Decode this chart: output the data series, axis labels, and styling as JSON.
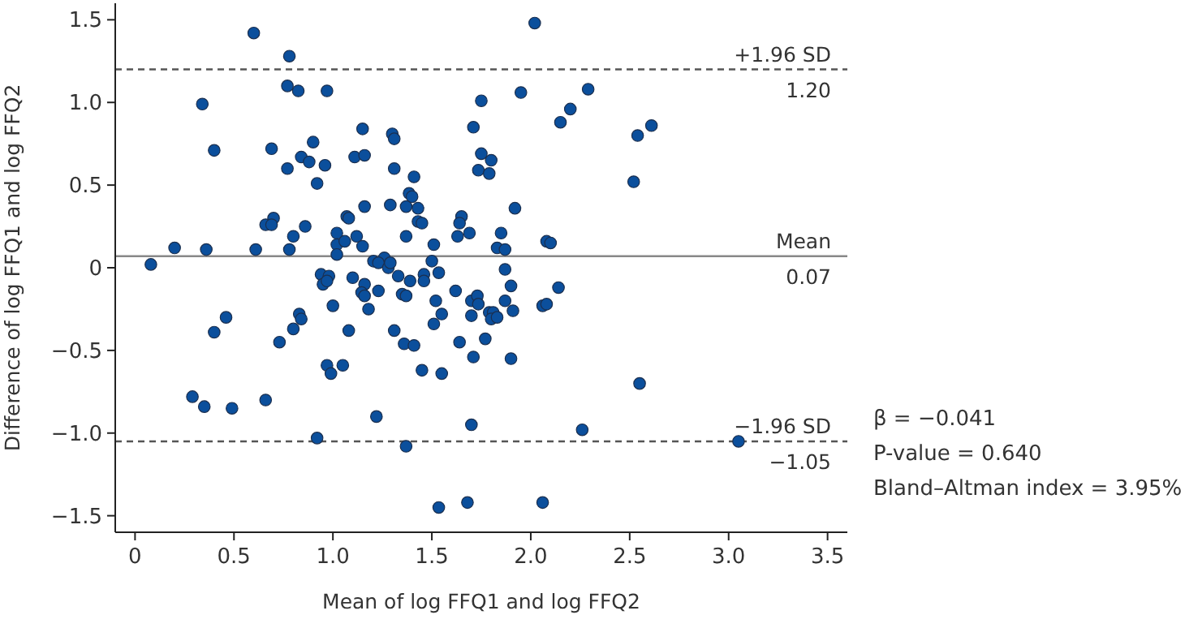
{
  "chart_data": {
    "type": "scatter",
    "xlabel": "Mean of log FFQ1 and log FFQ2",
    "ylabel": "Difference of log FFQ1 and log FFQ2",
    "color": "#0b4f9c",
    "marker": "circle",
    "xlim": [
      -0.1,
      3.6
    ],
    "ylim": [
      -1.6,
      1.6
    ],
    "xticks": [
      0,
      0.5,
      {
        "value": 1,
        "label": "1.0"
      },
      1.5,
      {
        "value": 2,
        "label": "2.0"
      },
      2.5,
      {
        "value": 3,
        "label": "3.0"
      },
      3.5
    ],
    "yticks": [
      {
        "value": -1.5,
        "label": "−1.5"
      },
      {
        "value": -1,
        "label": "−1.0"
      },
      {
        "value": -0.5,
        "label": "−0.5"
      },
      0,
      0.5,
      {
        "value": 1,
        "label": "1.0"
      },
      1.5
    ],
    "x": [
      0.6,
      0.78,
      0.77,
      0.825,
      0.97,
      0.34,
      0.4,
      0.69,
      0.9,
      0.84,
      0.88,
      0.96,
      0.77,
      0.92,
      1.15,
      1.11,
      1.16,
      0.7,
      0.66,
      0.69,
      0.86,
      0.8,
      0.2,
      0.36,
      0.61,
      0.78,
      1.07,
      1.08,
      1.16,
      1.02,
      1.12,
      1.02,
      1.06,
      1.15,
      1.02,
      2.02,
      1.95,
      2.29,
      1.75,
      2.2,
      2.15,
      2.61,
      2.54,
      1.71,
      1.3,
      1.31,
      1.75,
      1.8,
      1.735,
      1.79,
      2.52,
      1.31,
      1.41,
      1.385,
      1.4,
      1.29,
      1.37,
      1.43,
      1.43,
      1.45,
      1.37,
      1.51,
      1.92,
      1.65,
      1.64,
      1.63,
      1.69,
      1.85,
      1.83,
      1.87,
      2.08,
      2.1,
      1.26,
      0.08,
      0.94,
      0.98,
      0.95,
      0.97,
      1.1,
      1.16,
      1.145,
      1.16,
      1.18,
      1.0,
      0.83,
      0.84,
      0.8,
      0.73,
      1.08,
      0.46,
      0.4,
      0.97,
      0.99,
      1.05,
      0.29,
      0.35,
      0.49,
      0.66,
      0.92,
      1.205,
      1.23,
      1.28,
      1.29,
      1.33,
      1.23,
      1.35,
      1.37,
      1.39,
      1.46,
      1.46,
      1.5,
      1.535,
      1.52,
      1.55,
      1.51,
      1.31,
      1.36,
      1.41,
      1.45,
      1.55,
      1.22,
      1.37,
      1.535,
      1.68,
      2.06,
      1.7,
      2.26,
      2.55,
      3.05,
      1.62,
      1.7,
      1.73,
      1.735,
      1.7,
      1.79,
      1.81,
      1.8,
      1.83,
      1.87,
      1.87,
      1.9,
      1.91,
      1.64,
      1.77,
      1.71,
      1.9,
      2.06,
      2.08,
      2.14
    ],
    "values": [
      1.42,
      1.28,
      1.1,
      1.07,
      1.07,
      0.99,
      0.71,
      0.72,
      0.76,
      0.67,
      0.64,
      0.62,
      0.6,
      0.51,
      0.84,
      0.67,
      0.68,
      0.3,
      0.26,
      0.26,
      0.25,
      0.19,
      0.12,
      0.11,
      0.11,
      0.11,
      0.31,
      0.3,
      0.37,
      0.21,
      0.19,
      0.14,
      0.16,
      0.13,
      0.08,
      1.48,
      1.06,
      1.08,
      1.01,
      0.96,
      0.88,
      0.86,
      0.8,
      0.85,
      0.81,
      0.78,
      0.69,
      0.65,
      0.59,
      0.57,
      0.52,
      0.6,
      0.55,
      0.45,
      0.43,
      0.38,
      0.37,
      0.36,
      0.28,
      0.27,
      0.19,
      0.14,
      0.36,
      0.31,
      0.27,
      0.19,
      0.21,
      0.21,
      0.12,
      0.11,
      0.16,
      0.15,
      0.06,
      0.02,
      -0.04,
      -0.05,
      -0.1,
      -0.08,
      -0.06,
      -0.1,
      -0.15,
      -0.17,
      -0.25,
      -0.23,
      -0.28,
      -0.31,
      -0.37,
      -0.45,
      -0.38,
      -0.3,
      -0.39,
      -0.59,
      -0.64,
      -0.59,
      -0.78,
      -0.84,
      -0.85,
      -0.8,
      -1.03,
      0.04,
      0.03,
      0.0,
      0.03,
      -0.05,
      -0.14,
      -0.16,
      -0.17,
      -0.08,
      -0.04,
      -0.08,
      0.04,
      -0.03,
      -0.2,
      -0.28,
      -0.34,
      -0.38,
      -0.46,
      -0.47,
      -0.62,
      -0.64,
      -0.9,
      -1.08,
      -1.45,
      -1.42,
      -1.42,
      -0.95,
      -0.98,
      -0.7,
      -1.05,
      -0.14,
      -0.2,
      -0.17,
      -0.22,
      -0.29,
      -0.27,
      -0.27,
      -0.31,
      -0.3,
      -0.2,
      -0.01,
      -0.11,
      -0.26,
      -0.45,
      -0.43,
      -0.54,
      -0.55,
      -0.23,
      -0.22,
      -0.12
    ],
    "ref_lines": [
      {
        "axis": "y",
        "value": 1.2,
        "label": "+1.96 SD",
        "line_style": "dashed",
        "color": "#555555"
      },
      {
        "axis": "y",
        "value": 0.07,
        "label": "Mean",
        "line_style": "solid",
        "color": "#888888"
      },
      {
        "axis": "y",
        "value": -1.05,
        "label": "−1.96 SD",
        "line_style": "dashed",
        "color": "#555555"
      }
    ],
    "annotations": [
      {
        "text": "1.20",
        "y": 1.2
      },
      {
        "text": "0.07",
        "y": 0.07
      },
      {
        "text": "−1.05",
        "y": -1.05
      },
      "β = −0.041",
      "P-value = 0.640",
      "Bland–Altman index = 3.95%"
    ]
  }
}
